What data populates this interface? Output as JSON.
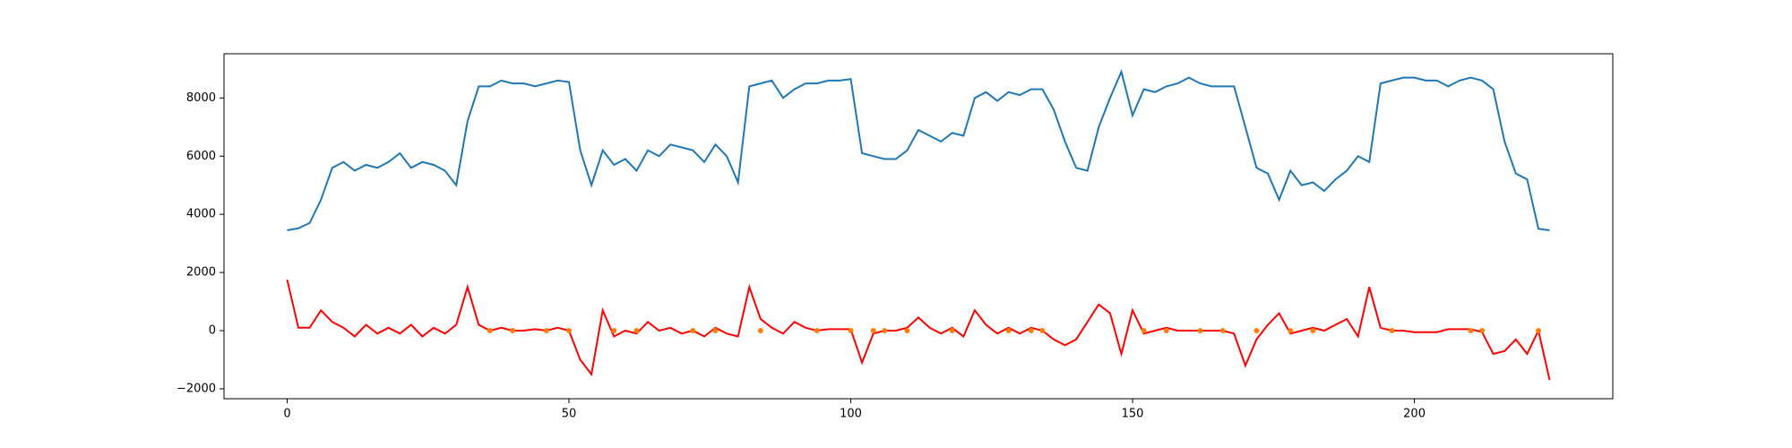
{
  "chart_data": {
    "type": "line",
    "x": [
      0,
      2,
      4,
      6,
      8,
      10,
      12,
      14,
      16,
      18,
      20,
      22,
      24,
      26,
      28,
      30,
      32,
      34,
      36,
      38,
      40,
      42,
      44,
      46,
      48,
      50,
      52,
      54,
      56,
      58,
      60,
      62,
      64,
      66,
      68,
      70,
      72,
      74,
      76,
      78,
      80,
      82,
      84,
      86,
      88,
      90,
      92,
      94,
      96,
      98,
      100,
      102,
      104,
      106,
      108,
      110,
      112,
      114,
      116,
      118,
      120,
      122,
      124,
      126,
      128,
      130,
      132,
      134,
      136,
      138,
      140,
      142,
      144,
      146,
      148,
      150,
      152,
      154,
      156,
      158,
      160,
      162,
      164,
      166,
      168,
      170,
      172,
      174,
      176,
      178,
      180,
      182,
      184,
      186,
      188,
      190,
      192,
      194,
      196,
      198,
      200,
      202,
      204,
      206,
      208,
      210,
      212,
      214,
      216,
      218,
      220,
      222,
      224
    ],
    "series": [
      {
        "color": "#1f77b4",
        "values": [
          3450,
          3520,
          3700,
          4500,
          5600,
          5800,
          5500,
          5700,
          5600,
          5800,
          6100,
          5600,
          5800,
          5700,
          5500,
          5000,
          7200,
          8400,
          8400,
          8600,
          8500,
          8500,
          8400,
          8500,
          8600,
          8550,
          6200,
          5000,
          6200,
          5700,
          5900,
          5500,
          6200,
          6000,
          6400,
          6300,
          6200,
          5800,
          6400,
          6000,
          5100,
          8400,
          8500,
          8600,
          8000,
          8300,
          8500,
          8500,
          8600,
          8600,
          8650,
          6100,
          6000,
          5900,
          5900,
          6200,
          6900,
          6700,
          6500,
          6800,
          6700,
          8000,
          8200,
          7900,
          8200,
          8100,
          8300,
          8300,
          7600,
          6500,
          5600,
          5500,
          7000,
          8000,
          8900,
          7400,
          8300,
          8200,
          8400,
          8500,
          8700,
          8500,
          8400,
          8400,
          8400,
          7000,
          5600,
          5400,
          4500,
          5500,
          5000,
          5100,
          4800,
          5200,
          5500,
          6000,
          5800,
          8500,
          8600,
          8700,
          8700,
          8600,
          8600,
          8400,
          8600,
          8700,
          8600,
          8300,
          6500,
          5400,
          5200,
          3500,
          3450
        ]
      },
      {
        "color": "#ff0000",
        "values": [
          1750,
          100,
          100,
          700,
          300,
          100,
          -200,
          200,
          -100,
          100,
          -100,
          200,
          -200,
          100,
          -100,
          200,
          1500,
          200,
          0,
          100,
          0,
          0,
          50,
          0,
          100,
          0,
          -1000,
          -1500,
          700,
          -200,
          0,
          -100,
          300,
          0,
          100,
          -100,
          0,
          -200,
          100,
          -100,
          -200,
          1500,
          400,
          100,
          -100,
          300,
          100,
          0,
          50,
          50,
          50,
          -1100,
          -100,
          0,
          0,
          100,
          450,
          100,
          -100,
          100,
          -200,
          700,
          200,
          -100,
          100,
          -100,
          100,
          0,
          -300,
          -500,
          -300,
          300,
          900,
          600,
          -800,
          700,
          -100,
          0,
          100,
          0,
          0,
          0,
          0,
          0,
          -100,
          -1200,
          -300,
          200,
          600,
          -100,
          0,
          100,
          0,
          200,
          400,
          -200,
          1500,
          100,
          0,
          0,
          -50,
          -50,
          -50,
          50,
          50,
          50,
          -50,
          -800,
          -700,
          -300,
          -800,
          0,
          -1700
        ]
      }
    ],
    "points": {
      "color": "#ff7f0e",
      "x": [
        36,
        40,
        46,
        50,
        58,
        62,
        72,
        76,
        84,
        94,
        100,
        104,
        106,
        110,
        118,
        128,
        132,
        134,
        152,
        156,
        162,
        166,
        172,
        178,
        182,
        196,
        210,
        212,
        222
      ],
      "values": [
        0,
        0,
        0,
        0,
        0,
        0,
        0,
        0,
        0,
        0,
        0,
        0,
        0,
        0,
        0,
        0,
        0,
        0,
        0,
        0,
        0,
        0,
        0,
        0,
        0,
        0,
        0,
        0,
        0
      ]
    },
    "xlim": [
      -11.2,
      235.2
    ],
    "ylim": [
      -2340,
      9520
    ],
    "xticks": [
      0,
      50,
      100,
      150,
      200
    ],
    "yticks": [
      {
        "value": -2000,
        "label": "−2000"
      },
      0,
      2000,
      4000,
      6000,
      8000
    ]
  }
}
